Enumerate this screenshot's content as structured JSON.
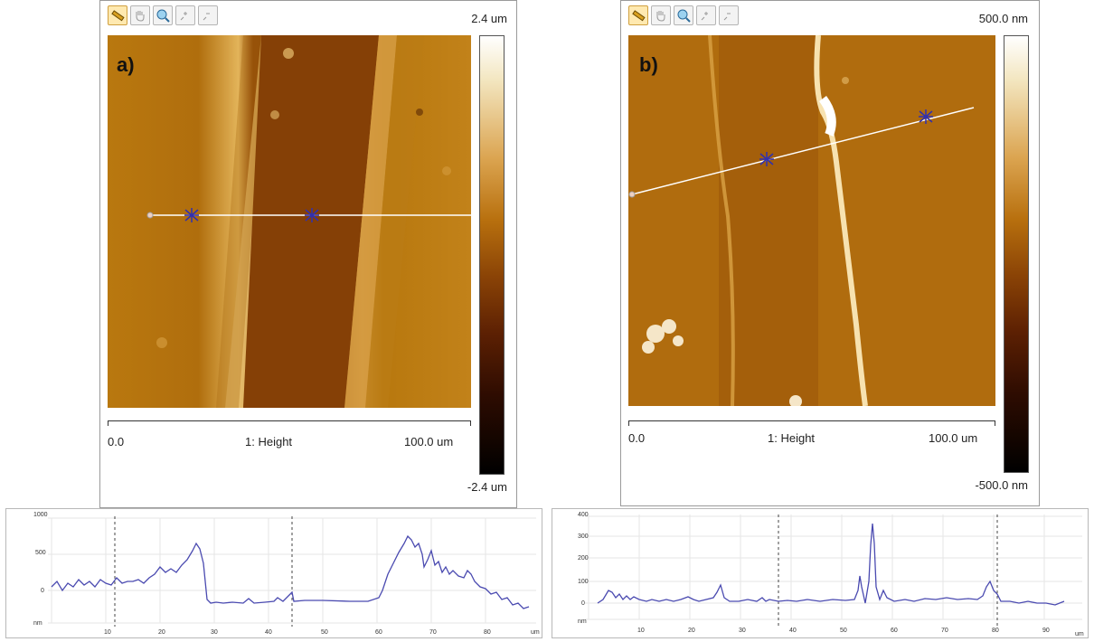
{
  "panel_a": {
    "label": "a)",
    "scale_max": "2.4 um",
    "scale_min": "-2.4 um",
    "axis_start": "0.0",
    "axis_title": "1: Height",
    "axis_end": "100.0 um",
    "profile": {
      "y_ticks": [
        "1000",
        "500",
        "0",
        "nm"
      ],
      "x_ticks": [
        "10",
        "20",
        "30",
        "40",
        "50",
        "60",
        "70",
        "80",
        "um"
      ]
    }
  },
  "panel_b": {
    "label": "b)",
    "scale_max": "500.0 nm",
    "scale_min": "-500.0 nm",
    "axis_start": "0.0",
    "axis_title": "1: Height",
    "axis_end": "100.0 um",
    "profile": {
      "y_ticks": [
        "400",
        "300",
        "200",
        "100",
        "0",
        "nm"
      ],
      "x_ticks": [
        "10",
        "20",
        "30",
        "40",
        "50",
        "60",
        "70",
        "80",
        "90",
        "um"
      ]
    }
  },
  "toolbar_icons": [
    "ruler-icon",
    "hand-pan-icon",
    "magnifier-icon",
    "zoom-in-icon",
    "zoom-out-icon"
  ],
  "colors": {
    "line": "#5b5bc8",
    "cursor": "#2020a0",
    "profile_bg": "#ffffff"
  }
}
